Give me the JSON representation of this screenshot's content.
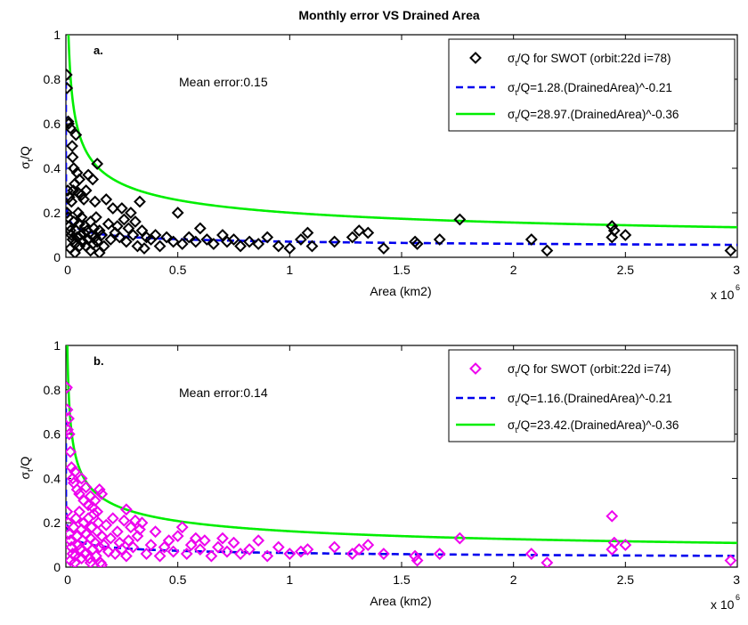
{
  "figure": {
    "title": "Monthly error VS Drained Area"
  },
  "chart_data": [
    {
      "type": "scatter",
      "panel_label": "a.",
      "annotation": "Mean error:0.15",
      "xlabel": "Area (km2)",
      "ylabel": "σ_t/Q",
      "x_multiplier": "x 10^6",
      "xlim": [
        0,
        3
      ],
      "ylim": [
        0,
        1
      ],
      "x_ticks": [
        "0",
        "0.5",
        "1",
        "1.5",
        "2",
        "2.5",
        "3"
      ],
      "y_ticks": [
        "0",
        "0.2",
        "0.4",
        "0.6",
        "0.8",
        "1"
      ],
      "legend": {
        "placement": "top-right",
        "entries": [
          {
            "pre": "σ",
            "sub": "t",
            "post": "/Q for SWOT (orbit:22d i=78)",
            "kind": "marker",
            "color": "#000000"
          },
          {
            "pre": "σ",
            "sub": "t",
            "post": "/Q=1.28.(DrainedArea)^-0.21",
            "kind": "dashed",
            "color": "#0000ee"
          },
          {
            "pre": "σ",
            "sub": "t",
            "post": "/Q=28.97.(DrainedArea)^-0.36",
            "kind": "solid",
            "color": "#00ee00"
          }
        ]
      },
      "series": [
        {
          "name": "σt/Q for SWOT (orbit:22d i=78)",
          "kind": "scatter",
          "color": "#000000",
          "points": [
            [
              0.003,
              0.82
            ],
            [
              0.005,
              0.76
            ],
            [
              0.01,
              0.61
            ],
            [
              0.012,
              0.6
            ],
            [
              0.02,
              0.58
            ],
            [
              0.028,
              0.5
            ],
            [
              0.03,
              0.45
            ],
            [
              0.035,
              0.4
            ],
            [
              0.045,
              0.55
            ],
            [
              0.05,
              0.38
            ],
            [
              0.06,
              0.35
            ],
            [
              0.008,
              0.3
            ],
            [
              0.015,
              0.27
            ],
            [
              0.025,
              0.25
            ],
            [
              0.033,
              0.3
            ],
            [
              0.04,
              0.33
            ],
            [
              0.055,
              0.29
            ],
            [
              0.07,
              0.28
            ],
            [
              0.08,
              0.26
            ],
            [
              0.09,
              0.3
            ],
            [
              0.1,
              0.37
            ],
            [
              0.12,
              0.35
            ],
            [
              0.13,
              0.25
            ],
            [
              0.14,
              0.42
            ],
            [
              0.005,
              0.2
            ],
            [
              0.01,
              0.18
            ],
            [
              0.015,
              0.14
            ],
            [
              0.02,
              0.12
            ],
            [
              0.025,
              0.1
            ],
            [
              0.03,
              0.08
            ],
            [
              0.035,
              0.16
            ],
            [
              0.04,
              0.06
            ],
            [
              0.045,
              0.12
            ],
            [
              0.05,
              0.09
            ],
            [
              0.055,
              0.2
            ],
            [
              0.06,
              0.15
            ],
            [
              0.065,
              0.1
            ],
            [
              0.07,
              0.18
            ],
            [
              0.075,
              0.07
            ],
            [
              0.08,
              0.11
            ],
            [
              0.085,
              0.14
            ],
            [
              0.09,
              0.05
            ],
            [
              0.095,
              0.12
            ],
            [
              0.1,
              0.08
            ],
            [
              0.11,
              0.16
            ],
            [
              0.115,
              0.1
            ],
            [
              0.12,
              0.06
            ],
            [
              0.125,
              0.13
            ],
            [
              0.13,
              0.09
            ],
            [
              0.135,
              0.18
            ],
            [
              0.14,
              0.07
            ],
            [
              0.15,
              0.12
            ],
            [
              0.16,
              0.1
            ],
            [
              0.17,
              0.05
            ],
            [
              0.18,
              0.26
            ],
            [
              0.19,
              0.15
            ],
            [
              0.2,
              0.08
            ],
            [
              0.21,
              0.22
            ],
            [
              0.22,
              0.11
            ],
            [
              0.23,
              0.14
            ],
            [
              0.24,
              0.09
            ],
            [
              0.25,
              0.22
            ],
            [
              0.26,
              0.17
            ],
            [
              0.27,
              0.07
            ],
            [
              0.28,
              0.13
            ],
            [
              0.29,
              0.2
            ],
            [
              0.3,
              0.1
            ],
            [
              0.31,
              0.16
            ],
            [
              0.32,
              0.05
            ],
            [
              0.33,
              0.25
            ],
            [
              0.34,
              0.12
            ],
            [
              0.35,
              0.04
            ],
            [
              0.36,
              0.09
            ],
            [
              0.38,
              0.08
            ],
            [
              0.4,
              0.1
            ],
            [
              0.42,
              0.05
            ],
            [
              0.45,
              0.09
            ],
            [
              0.48,
              0.07
            ],
            [
              0.5,
              0.2
            ],
            [
              0.52,
              0.06
            ],
            [
              0.55,
              0.09
            ],
            [
              0.58,
              0.07
            ],
            [
              0.6,
              0.13
            ],
            [
              0.63,
              0.08
            ],
            [
              0.66,
              0.06
            ],
            [
              0.7,
              0.1
            ],
            [
              0.72,
              0.07
            ],
            [
              0.75,
              0.08
            ],
            [
              0.78,
              0.05
            ],
            [
              0.82,
              0.07
            ],
            [
              0.86,
              0.06
            ],
            [
              0.9,
              0.09
            ],
            [
              0.95,
              0.05
            ],
            [
              1.0,
              0.04
            ],
            [
              1.05,
              0.08
            ],
            [
              1.08,
              0.11
            ],
            [
              1.1,
              0.05
            ],
            [
              1.2,
              0.07
            ],
            [
              1.28,
              0.09
            ],
            [
              1.31,
              0.12
            ],
            [
              1.35,
              0.11
            ],
            [
              1.42,
              0.04
            ],
            [
              1.56,
              0.07
            ],
            [
              1.57,
              0.06
            ],
            [
              1.67,
              0.08
            ],
            [
              1.76,
              0.17
            ],
            [
              2.08,
              0.08
            ],
            [
              2.15,
              0.03
            ],
            [
              2.44,
              0.14
            ],
            [
              2.44,
              0.09
            ],
            [
              2.45,
              0.12
            ],
            [
              2.5,
              0.1
            ],
            [
              2.97,
              0.03
            ],
            [
              0.02,
              0.04
            ],
            [
              0.04,
              0.02
            ],
            [
              0.06,
              0.05
            ],
            [
              0.11,
              0.03
            ],
            [
              0.15,
              0.02
            ]
          ]
        },
        {
          "name": "σt/Q=1.28.(DrainedArea)^-0.21",
          "kind": "power_fit",
          "coef": 1.28,
          "exponent": -0.21,
          "color": "#0000ee",
          "dash": "dashed"
        },
        {
          "name": "σt/Q=28.97.(DrainedArea)^-0.36",
          "kind": "power_fit",
          "coef": 28.97,
          "exponent": -0.36,
          "color": "#00ee00",
          "dash": "solid"
        }
      ]
    },
    {
      "type": "scatter",
      "panel_label": "b.",
      "annotation": "Mean error:0.14",
      "xlabel": "Area (km2)",
      "ylabel": "σ_t/Q",
      "x_multiplier": "x 10^6",
      "xlim": [
        0,
        3
      ],
      "ylim": [
        0,
        1
      ],
      "x_ticks": [
        "0",
        "0.5",
        "1",
        "1.5",
        "2",
        "2.5",
        "3"
      ],
      "y_ticks": [
        "0",
        "0.2",
        "0.4",
        "0.6",
        "0.8",
        "1"
      ],
      "legend": {
        "placement": "top-right",
        "entries": [
          {
            "pre": "σ",
            "sub": "t",
            "post": "/Q for SWOT (orbit:22d i=74)",
            "kind": "marker",
            "color": "#ee00ee"
          },
          {
            "pre": "σ",
            "sub": "t",
            "post": "/Q=1.16.(DrainedArea)^-0.21",
            "kind": "dashed",
            "color": "#0000ee"
          },
          {
            "pre": "σ",
            "sub": "t",
            "post": "/Q=23.42.(DrainedArea)^-0.36",
            "kind": "solid",
            "color": "#00ee00"
          }
        ]
      },
      "series": [
        {
          "name": "σt/Q for SWOT (orbit:22d i=74)",
          "kind": "scatter",
          "color": "#ee00ee",
          "points": [
            [
              0.004,
              0.81
            ],
            [
              0.006,
              0.71
            ],
            [
              0.008,
              0.62
            ],
            [
              0.012,
              0.67
            ],
            [
              0.015,
              0.6
            ],
            [
              0.02,
              0.52
            ],
            [
              0.025,
              0.45
            ],
            [
              0.03,
              0.4
            ],
            [
              0.035,
              0.38
            ],
            [
              0.04,
              0.43
            ],
            [
              0.05,
              0.35
            ],
            [
              0.06,
              0.33
            ],
            [
              0.07,
              0.4
            ],
            [
              0.08,
              0.3
            ],
            [
              0.09,
              0.36
            ],
            [
              0.1,
              0.28
            ],
            [
              0.11,
              0.32
            ],
            [
              0.12,
              0.27
            ],
            [
              0.13,
              0.3
            ],
            [
              0.14,
              0.25
            ],
            [
              0.15,
              0.35
            ],
            [
              0.16,
              0.33
            ],
            [
              0.005,
              0.25
            ],
            [
              0.01,
              0.2
            ],
            [
              0.015,
              0.15
            ],
            [
              0.02,
              0.12
            ],
            [
              0.025,
              0.09
            ],
            [
              0.03,
              0.06
            ],
            [
              0.035,
              0.18
            ],
            [
              0.04,
              0.05
            ],
            [
              0.045,
              0.22
            ],
            [
              0.05,
              0.14
            ],
            [
              0.055,
              0.1
            ],
            [
              0.06,
              0.25
            ],
            [
              0.065,
              0.08
            ],
            [
              0.07,
              0.17
            ],
            [
              0.075,
              0.12
            ],
            [
              0.08,
              0.2
            ],
            [
              0.085,
              0.06
            ],
            [
              0.09,
              0.15
            ],
            [
              0.095,
              0.1
            ],
            [
              0.1,
              0.22
            ],
            [
              0.105,
              0.04
            ],
            [
              0.11,
              0.13
            ],
            [
              0.115,
              0.18
            ],
            [
              0.12,
              0.08
            ],
            [
              0.125,
              0.24
            ],
            [
              0.13,
              0.11
            ],
            [
              0.135,
              0.05
            ],
            [
              0.14,
              0.16
            ],
            [
              0.145,
              0.2
            ],
            [
              0.15,
              0.09
            ],
            [
              0.155,
              0.02
            ],
            [
              0.16,
              0.14
            ],
            [
              0.17,
              0.1
            ],
            [
              0.18,
              0.19
            ],
            [
              0.19,
              0.07
            ],
            [
              0.2,
              0.13
            ],
            [
              0.21,
              0.22
            ],
            [
              0.22,
              0.06
            ],
            [
              0.23,
              0.16
            ],
            [
              0.24,
              0.11
            ],
            [
              0.25,
              0.08
            ],
            [
              0.26,
              0.21
            ],
            [
              0.27,
              0.05
            ],
            [
              0.28,
              0.12
            ],
            [
              0.29,
              0.18
            ],
            [
              0.3,
              0.09
            ],
            [
              0.32,
              0.14
            ],
            [
              0.34,
              0.2
            ],
            [
              0.36,
              0.06
            ],
            [
              0.38,
              0.1
            ],
            [
              0.4,
              0.16
            ],
            [
              0.42,
              0.05
            ],
            [
              0.44,
              0.09
            ],
            [
              0.46,
              0.12
            ],
            [
              0.48,
              0.07
            ],
            [
              0.5,
              0.14
            ],
            [
              0.52,
              0.18
            ],
            [
              0.54,
              0.06
            ],
            [
              0.56,
              0.1
            ],
            [
              0.58,
              0.13
            ],
            [
              0.6,
              0.08
            ],
            [
              0.62,
              0.12
            ],
            [
              0.65,
              0.05
            ],
            [
              0.68,
              0.09
            ],
            [
              0.7,
              0.13
            ],
            [
              0.72,
              0.07
            ],
            [
              0.75,
              0.11
            ],
            [
              0.78,
              0.06
            ],
            [
              0.82,
              0.08
            ],
            [
              0.86,
              0.12
            ],
            [
              0.9,
              0.05
            ],
            [
              0.95,
              0.09
            ],
            [
              1.0,
              0.06
            ],
            [
              1.05,
              0.07
            ],
            [
              1.08,
              0.08
            ],
            [
              1.2,
              0.09
            ],
            [
              1.28,
              0.06
            ],
            [
              1.31,
              0.08
            ],
            [
              1.35,
              0.1
            ],
            [
              1.42,
              0.06
            ],
            [
              1.56,
              0.05
            ],
            [
              1.57,
              0.03
            ],
            [
              1.67,
              0.06
            ],
            [
              1.76,
              0.13
            ],
            [
              2.08,
              0.06
            ],
            [
              2.15,
              0.02
            ],
            [
              2.44,
              0.23
            ],
            [
              2.44,
              0.08
            ],
            [
              2.45,
              0.11
            ],
            [
              2.5,
              0.1
            ],
            [
              2.97,
              0.03
            ],
            [
              0.02,
              0.03
            ],
            [
              0.04,
              0.02
            ],
            [
              0.07,
              0.04
            ],
            [
              0.11,
              0.02
            ],
            [
              0.16,
              0.01
            ],
            [
              0.27,
              0.26
            ],
            [
              0.31,
              0.21
            ],
            [
              0.33,
              0.17
            ]
          ]
        },
        {
          "name": "σt/Q=1.16.(DrainedArea)^-0.21",
          "kind": "power_fit",
          "coef": 1.16,
          "exponent": -0.21,
          "color": "#0000ee",
          "dash": "dashed"
        },
        {
          "name": "σt/Q=23.42.(DrainedArea)^-0.36",
          "kind": "power_fit",
          "coef": 23.42,
          "exponent": -0.36,
          "color": "#00ee00",
          "dash": "solid"
        }
      ]
    }
  ]
}
